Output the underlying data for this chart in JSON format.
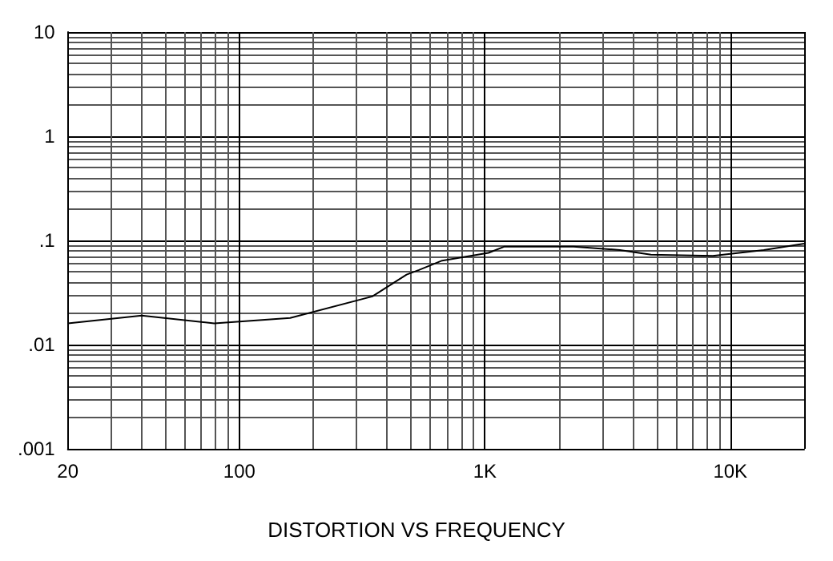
{
  "chart_data": {
    "type": "line",
    "title": "DISTORTION VS FREQUENCY",
    "x": [
      20,
      40,
      79,
      161,
      348,
      480,
      539,
      670,
      1035,
      1197,
      2300,
      3550,
      4750,
      8490,
      13700,
      20000
    ],
    "values": [
      0.016,
      0.019,
      0.016,
      0.018,
      0.029,
      0.047,
      0.052,
      0.064,
      0.076,
      0.087,
      0.087,
      0.081,
      0.073,
      0.071,
      0.081,
      0.093
    ],
    "color": "#000000",
    "xlim": [
      20,
      20000
    ],
    "xticks": [
      20,
      100,
      {
        "value": 1000,
        "label": "1K"
      },
      {
        "value": 10000,
        "label": "10K"
      }
    ],
    "ylim": [
      0.001,
      10
    ],
    "yticks": [
      {
        "value": 0.001,
        "label": ".001"
      },
      {
        "value": 0.01,
        "label": ".01"
      },
      {
        "value": 0.1,
        "label": ".1"
      },
      1,
      10
    ],
    "log": "xy",
    "grid": true,
    "marker": "none",
    "line_style": "solid"
  }
}
